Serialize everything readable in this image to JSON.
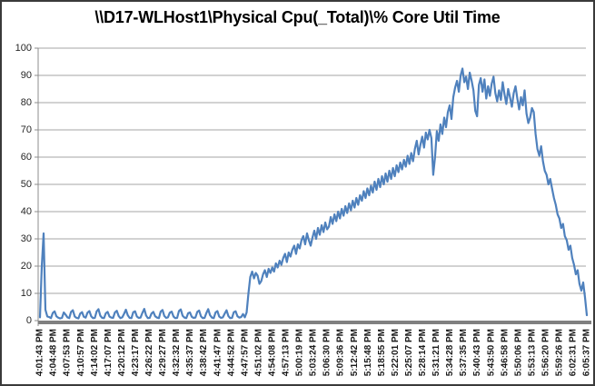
{
  "chart_data": {
    "type": "line",
    "title": "\\\\D17-WLHost1\\Physical Cpu(_Total)\\% Core Util Time",
    "xlabel": "",
    "ylabel": "",
    "ylim": [
      0,
      100
    ],
    "yticks": [
      0,
      10,
      20,
      30,
      40,
      50,
      60,
      70,
      80,
      90,
      100
    ],
    "grid": true,
    "legend": "none",
    "categories": [
      "4:01:43 PM",
      "4:04:48 PM",
      "4:07:53 PM",
      "4:10:57 PM",
      "4:14:02 PM",
      "4:17:07 PM",
      "4:20:12 PM",
      "4:23:17 PM",
      "4:26:22 PM",
      "4:29:27 PM",
      "4:32:32 PM",
      "4:35:37 PM",
      "4:38:42 PM",
      "4:41:47 PM",
      "4:44:52 PM",
      "4:47:57 PM",
      "4:51:02 PM",
      "4:54:08 PM",
      "4:57:13 PM",
      "5:00:19 PM",
      "5:03:24 PM",
      "5:06:30 PM",
      "5:09:36 PM",
      "5:12:42 PM",
      "5:15:48 PM",
      "5:18:55 PM",
      "5:22:01 PM",
      "5:25:07 PM",
      "5:28:14 PM",
      "5:31:21 PM",
      "5:34:28 PM",
      "5:37:35 PM",
      "5:40:43 PM",
      "5:43:50 PM",
      "5:46:58 PM",
      "5:50:06 PM",
      "5:53:13 PM",
      "5:56:20 PM",
      "5:59:26 PM",
      "6:02:31 PM",
      "6:05:37 PM"
    ],
    "series_name": "% Core Util Time",
    "values": [
      1.2,
      20,
      32,
      4,
      1.5,
      1.3,
      0.9,
      2.8,
      3.4,
      1.6,
      1.1,
      0.8,
      1.0,
      3.0,
      2.2,
      1.2,
      0.9,
      3.2,
      3.8,
      1.5,
      1.0,
      0.8,
      2.6,
      3.1,
      1.4,
      1.1,
      2.9,
      3.5,
      1.6,
      0.9,
      1.0,
      3.4,
      4.2,
      1.8,
      1.0,
      0.9,
      2.7,
      3.2,
      1.5,
      1.1,
      1.0,
      3.0,
      3.6,
      1.7,
      0.9,
      1.2,
      2.5,
      4.0,
      2.0,
      1.0,
      0.9,
      3.1,
      3.4,
      1.5,
      1.0,
      1.1,
      2.8,
      4.3,
      1.9,
      0.9,
      1.0,
      2.6,
      3.2,
      1.6,
      1.1,
      0.9,
      3.3,
      3.9,
      1.7,
      1.0,
      1.2,
      2.9,
      3.3,
      1.5,
      0.9,
      1.0,
      3.5,
      4.1,
      1.8,
      1.1,
      0.9,
      2.7,
      3.0,
      1.4,
      1.0,
      1.1,
      3.2,
      3.7,
      1.6,
      0.9,
      1.0,
      2.8,
      4.2,
      2.0,
      1.1,
      0.9,
      3.0,
      3.5,
      1.5,
      1.0,
      1.2,
      2.6,
      3.8,
      1.7,
      0.9,
      1.0,
      3.1,
      3.4,
      1.6,
      1.1,
      1.3,
      2.4,
      1.2,
      3.0,
      10.0,
      16.0,
      18.0,
      15.5,
      17.5,
      16.5,
      13.5,
      14.5,
      17.0,
      18.5,
      16.0,
      19.0,
      17.5,
      19.5,
      18.0,
      21.0,
      19.5,
      22.0,
      20.5,
      23.0,
      24.5,
      21.5,
      25.0,
      23.5,
      26.0,
      27.5,
      24.5,
      28.0,
      26.5,
      29.5,
      31.0,
      28.0,
      32.0,
      29.5,
      27.5,
      30.5,
      33.0,
      30.0,
      34.0,
      31.5,
      35.0,
      32.5,
      36.0,
      33.5,
      34.5,
      38.0,
      35.5,
      39.0,
      36.5,
      40.0,
      37.5,
      41.0,
      38.5,
      42.0,
      39.5,
      43.0,
      40.5,
      44.0,
      41.5,
      45.0,
      42.5,
      46.0,
      44.0,
      47.5,
      45.0,
      48.5,
      46.0,
      49.5,
      47.0,
      51.0,
      48.0,
      52.0,
      49.0,
      53.0,
      50.0,
      54.0,
      51.0,
      55.0,
      52.0,
      56.0,
      53.0,
      57.0,
      54.5,
      58.0,
      55.5,
      59.0,
      56.5,
      60.5,
      57.5,
      61.5,
      58.5,
      63.0,
      66.0,
      61.0,
      64.5,
      67.5,
      63.5,
      69.0,
      66.5,
      70.0,
      67.0,
      53.5,
      60.0,
      69.5,
      66.0,
      72.0,
      68.5,
      74.5,
      71.0,
      76.5,
      79.0,
      74.0,
      82.0,
      85.5,
      88.0,
      84.0,
      90.0,
      92.5,
      87.5,
      89.5,
      85.0,
      91.0,
      88.0,
      84.5,
      77.0,
      75.0,
      86.5,
      89.0,
      84.0,
      88.5,
      81.5,
      86.0,
      82.5,
      87.0,
      89.5,
      83.5,
      80.5,
      84.5,
      81.0,
      87.5,
      83.0,
      79.5,
      85.0,
      82.0,
      78.5,
      83.5,
      86.0,
      81.5,
      77.5,
      82.0,
      79.0,
      84.5,
      76.0,
      72.5,
      74.5,
      78.0,
      76.5,
      68.5,
      63.0,
      60.5,
      64.0,
      58.5,
      55.0,
      53.5,
      50.0,
      52.0,
      48.5,
      45.0,
      42.5,
      39.0,
      37.5,
      34.0,
      35.5,
      31.0,
      29.5,
      26.0,
      27.5,
      23.0,
      20.5,
      17.0,
      18.5,
      13.5,
      11.0,
      14.0,
      8.5,
      2.0
    ],
    "colors": {
      "line": "#4F81BD",
      "gridline": "#A6A6A6",
      "axis": "#8C8C8C",
      "axis_bar": "#808080",
      "title_text": "#000000",
      "tick_text": "#1A1A1A",
      "background": "#FFFFFF",
      "border": "#3A3A3A"
    }
  }
}
